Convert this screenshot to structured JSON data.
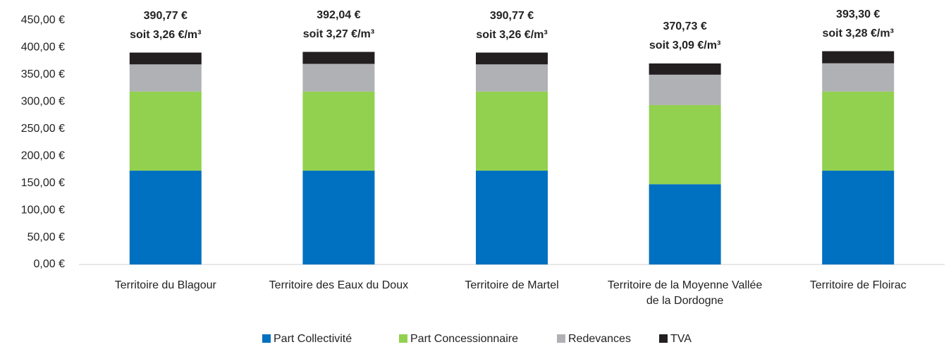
{
  "chart_data": {
    "type": "stacked_bar",
    "categories": [
      "Territoire du Blagour",
      "Territoire des Eaux du Doux",
      "Territoire de Martel",
      "Territoire de la Moyenne Vallée de la Dordogne",
      "Territoire de Floirac"
    ],
    "series": [
      {
        "name": "Part Collectivité",
        "color": "#0070c0",
        "values": [
          173,
          173,
          173,
          148,
          173
        ]
      },
      {
        "name": "Part Concessionnaire",
        "color": "#92d050",
        "values": [
          146,
          146,
          146,
          146,
          146
        ]
      },
      {
        "name": "Redevances",
        "color": "#b0b1b5",
        "values": [
          50,
          51,
          50,
          56,
          52
        ]
      },
      {
        "name": "TVA",
        "color": "#231f20",
        "values": [
          21.77,
          22.04,
          21.77,
          20.73,
          22.3
        ]
      }
    ],
    "annotations": [
      {
        "total": "390,77 €",
        "per_m3": "soit 3,26 €/m³"
      },
      {
        "total": "392,04 €",
        "per_m3": "soit 3,27 €/m³"
      },
      {
        "total": "390,77 €",
        "per_m3": "soit 3,26 €/m³"
      },
      {
        "total": "370,73 €",
        "per_m3": "soit 3,09 €/m³"
      },
      {
        "total": "393,30 €",
        "per_m3": "soit 3,28 €/m³"
      }
    ],
    "ylim": [
      0,
      450
    ],
    "yticks": [
      {
        "value": 0,
        "label": "0,00 €"
      },
      {
        "value": 50,
        "label": "50,00 €"
      },
      {
        "value": 100,
        "label": "100,00 €"
      },
      {
        "value": 150,
        "label": "150,00 €"
      },
      {
        "value": 200,
        "label": "200,00 €"
      },
      {
        "value": 250,
        "label": "250,00 €"
      },
      {
        "value": 300,
        "label": "300,00 €"
      },
      {
        "value": 350,
        "label": "350,00 €"
      },
      {
        "value": 400,
        "label": "400,00 €"
      },
      {
        "value": 450,
        "label": "450,00 €"
      }
    ],
    "grid": false,
    "legend": "bottom"
  }
}
